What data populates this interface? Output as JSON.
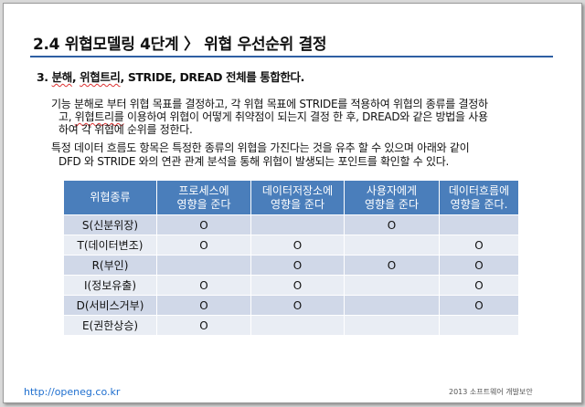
{
  "header": {
    "title": "2.4  위협모델링 4단계  〉  위협 우선순위 결정"
  },
  "subhead": {
    "prefix": "3. ",
    "w1": "분해",
    "mid1": ", ",
    "w2": "위협트리",
    "rest": ", STRIDE, DREAD 전체를 통합한다."
  },
  "paragraph1": {
    "line1": "기능 분해로 부터 위협 목표를 결정하고, 각 위협 목표에 STRIDE를 적용하여 위협의 종류를 결정하",
    "line2_pre": "고, ",
    "line2_word": "위협트리를",
    "line2_post": " 이용하여 위협이 어떻게 취약점이 되는지 결정 한 후, DREAD와 같은 방법을 사용",
    "line3": "하여 각 위협에 순위를 정한다."
  },
  "paragraph2": {
    "line1": "특정 데이터 흐름도 항목은 특정한 종류의 위협을 가진다는 것을 유추 할 수 있으며 아래와 같이",
    "line2": "DFD 와 STRIDE 와의 연관 관계 분석을 통해 위협이 발생되는 포인트를 확인할 수 있다."
  },
  "table": {
    "headers": [
      {
        "l1": "위협종류",
        "l2": ""
      },
      {
        "l1": "프로세스에",
        "l2": "영향을 준다"
      },
      {
        "l1": "데이터저장소에",
        "l2": "영향을 준다"
      },
      {
        "l1": "사용자에게",
        "l2": "영향을 준다"
      },
      {
        "l1": "데이터흐름에",
        "l2": "영향을 준다."
      }
    ],
    "rows": [
      [
        "S(신분위장)",
        "O",
        "",
        "O",
        ""
      ],
      [
        "T(데이터변조)",
        "O",
        "O",
        "",
        "O"
      ],
      [
        "R(부인)",
        "",
        "O",
        "O",
        "O"
      ],
      [
        "I(정보유출)",
        "O",
        "O",
        "",
        "O"
      ],
      [
        "D(서비스거부)",
        "O",
        "O",
        "",
        "O"
      ],
      [
        "E(권한상승)",
        "O",
        "",
        "",
        ""
      ]
    ]
  },
  "footer": {
    "url": "http://openeg.co.kr",
    "right": "2013 소프트웨어 개발보안"
  },
  "colors": {
    "header_fill": "#4a7ebb",
    "row_dark": "#d0d8e8",
    "row_light": "#e9edf4",
    "rule": "#2e5fa3"
  }
}
